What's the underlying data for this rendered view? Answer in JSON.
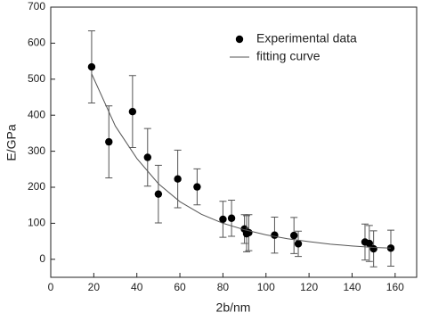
{
  "chart_data": {
    "type": "scatter",
    "x_label": "2b/nm",
    "y_label": "E/GPa",
    "xlim": [
      0,
      170
    ],
    "ylim": [
      -50,
      700
    ],
    "xticks": [
      0,
      20,
      40,
      60,
      80,
      100,
      120,
      140,
      160
    ],
    "yticks": [
      0,
      100,
      200,
      300,
      400,
      500,
      600,
      700
    ],
    "legend": "upper right",
    "series": [
      {
        "name": "Experimental data",
        "type": "scatter",
        "color": "#000000",
        "x": [
          19,
          27,
          38,
          45,
          50,
          59,
          68,
          80,
          84,
          90,
          91,
          92,
          104,
          113,
          115,
          146,
          148,
          150,
          158
        ],
        "values": [
          534,
          326,
          410,
          283,
          181,
          223,
          201,
          111,
          114,
          84,
          71,
          74,
          67,
          66,
          43,
          48,
          44,
          29,
          31
        ],
        "errors": [
          100,
          100,
          100,
          80,
          80,
          80,
          50,
          50,
          50,
          40,
          50,
          50,
          50,
          50,
          35,
          50,
          50,
          50,
          50
        ]
      },
      {
        "name": "fitting curve",
        "type": "line",
        "color": "#555555",
        "x": [
          19,
          30,
          40,
          50,
          60,
          70,
          80,
          90,
          100,
          110,
          120,
          130,
          140,
          150,
          158
        ],
        "values": [
          515,
          370,
          280,
          210,
          160,
          125,
          100,
          82,
          68,
          57,
          49,
          42,
          37,
          33,
          31
        ]
      }
    ]
  }
}
